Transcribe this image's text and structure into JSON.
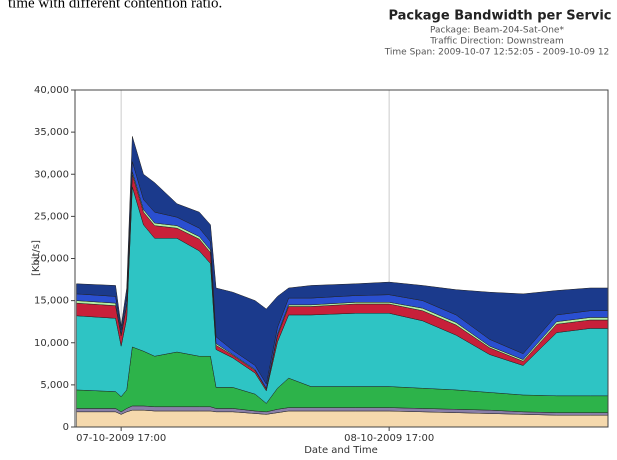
{
  "caption": "time with different contention ratio.",
  "chart_data": {
    "type": "stacked_area",
    "title": "Package Bandwidth per Servic",
    "subtitle": [
      "Package: Beam-204-Sat-One*",
      "Traffic Direction: Downstream",
      "Time Span: 2009-10-07 12:52:05 - 2009-10-09 12"
    ],
    "xlabel": "Date and Time",
    "ylabel": "[Kbit/s]",
    "x": [
      "2009-10-07 13:00",
      "2009-10-07 16:30",
      "2009-10-07 17:00",
      "2009-10-07 17:30",
      "2009-10-07 18:00",
      "2009-10-07 19:00",
      "2009-10-07 20:00",
      "2009-10-07 22:00",
      "2009-10-08 00:00",
      "2009-10-08 01:00",
      "2009-10-08 01:30",
      "2009-10-08 03:00",
      "2009-10-08 05:00",
      "2009-10-08 06:00",
      "2009-10-08 07:00",
      "2009-10-08 08:00",
      "2009-10-08 10:00",
      "2009-10-08 14:00",
      "2009-10-08 17:00",
      "2009-10-08 20:00",
      "2009-10-08 23:00",
      "2009-10-09 02:00",
      "2009-10-09 05:00",
      "2009-10-09 08:00",
      "2009-10-09 11:00",
      "2009-10-09 12:36"
    ],
    "series": [
      {
        "color": "#f5d9ad",
        "values": [
          1800,
          1800,
          1500,
          1800,
          2000,
          2000,
          1900,
          1900,
          1900,
          1900,
          1800,
          1800,
          1600,
          1500,
          1700,
          1900,
          1900,
          1900,
          1900,
          1800,
          1700,
          1600,
          1500,
          1400,
          1400,
          1400
        ]
      },
      {
        "color": "#8a7fa8",
        "values": [
          400,
          400,
          300,
          400,
          500,
          500,
          500,
          500,
          500,
          500,
          400,
          400,
          300,
          300,
          400,
          400,
          400,
          400,
          400,
          400,
          400,
          400,
          300,
          300,
          300,
          300
        ]
      },
      {
        "color": "#2db34a",
        "values": [
          2200,
          2000,
          1800,
          2200,
          7000,
          6500,
          6000,
          6500,
          6000,
          6000,
          2500,
          2500,
          2000,
          1000,
          2500,
          3500,
          2500,
          2500,
          2500,
          2400,
          2300,
          2100,
          2000,
          2000,
          2000,
          2000
        ]
      },
      {
        "color": "#2ec4c4",
        "values": [
          8800,
          8700,
          6000,
          8500,
          19000,
          15000,
          14000,
          13500,
          12500,
          11000,
          4500,
          3500,
          2500,
          1500,
          5500,
          7500,
          8500,
          8700,
          8700,
          8000,
          6500,
          4500,
          3500,
          7500,
          8000,
          8000
        ]
      },
      {
        "color": "#c8203a",
        "values": [
          1500,
          1500,
          1200,
          1500,
          1500,
          1500,
          1500,
          1200,
          1400,
          1300,
          500,
          300,
          300,
          200,
          700,
          1000,
          1000,
          1100,
          1100,
          1200,
          1200,
          800,
          500,
          1000,
          1000,
          1000
        ]
      },
      {
        "color": "#b4f0a4",
        "values": [
          300,
          300,
          200,
          300,
          300,
          300,
          300,
          300,
          300,
          300,
          200,
          100,
          100,
          100,
          200,
          200,
          200,
          200,
          200,
          300,
          300,
          200,
          200,
          300,
          300,
          300
        ]
      },
      {
        "color": "#2a4fd0",
        "values": [
          800,
          800,
          500,
          800,
          1200,
          1200,
          1300,
          1000,
          1000,
          1000,
          800,
          500,
          500,
          500,
          800,
          800,
          800,
          800,
          900,
          900,
          900,
          800,
          700,
          800,
          800,
          800
        ]
      },
      {
        "color": "#1b3a8c",
        "values": [
          1200,
          1300,
          500,
          1000,
          3000,
          3000,
          3500,
          1600,
          1900,
          2000,
          5800,
          6900,
          7700,
          8900,
          3700,
          1200,
          1500,
          1400,
          1500,
          1800,
          3000,
          5600,
          7100,
          2900,
          2700,
          2700
        ]
      }
    ],
    "xlim": [
      "2009-10-07 12:52",
      "2009-10-09 12:36"
    ],
    "xticks": [
      {
        "value": "2009-10-07 17:00",
        "label": "07-10-2009 17:00"
      },
      {
        "value": "2009-10-08 17:00",
        "label": "08-10-2009 17:00"
      }
    ],
    "ylim": [
      0,
      40000
    ],
    "yticks": [
      0,
      {
        "value": 5000,
        "label": "5,000"
      },
      {
        "value": 10000,
        "label": "10,000"
      },
      {
        "value": 15000,
        "label": "15,000"
      },
      {
        "value": 20000,
        "label": "20,000"
      },
      {
        "value": 25000,
        "label": "25,000"
      },
      {
        "value": 30000,
        "label": "30,000"
      },
      {
        "value": 35000,
        "label": "35,000"
      },
      {
        "value": 40000,
        "label": "40,000"
      }
    ],
    "xgrid": true
  }
}
